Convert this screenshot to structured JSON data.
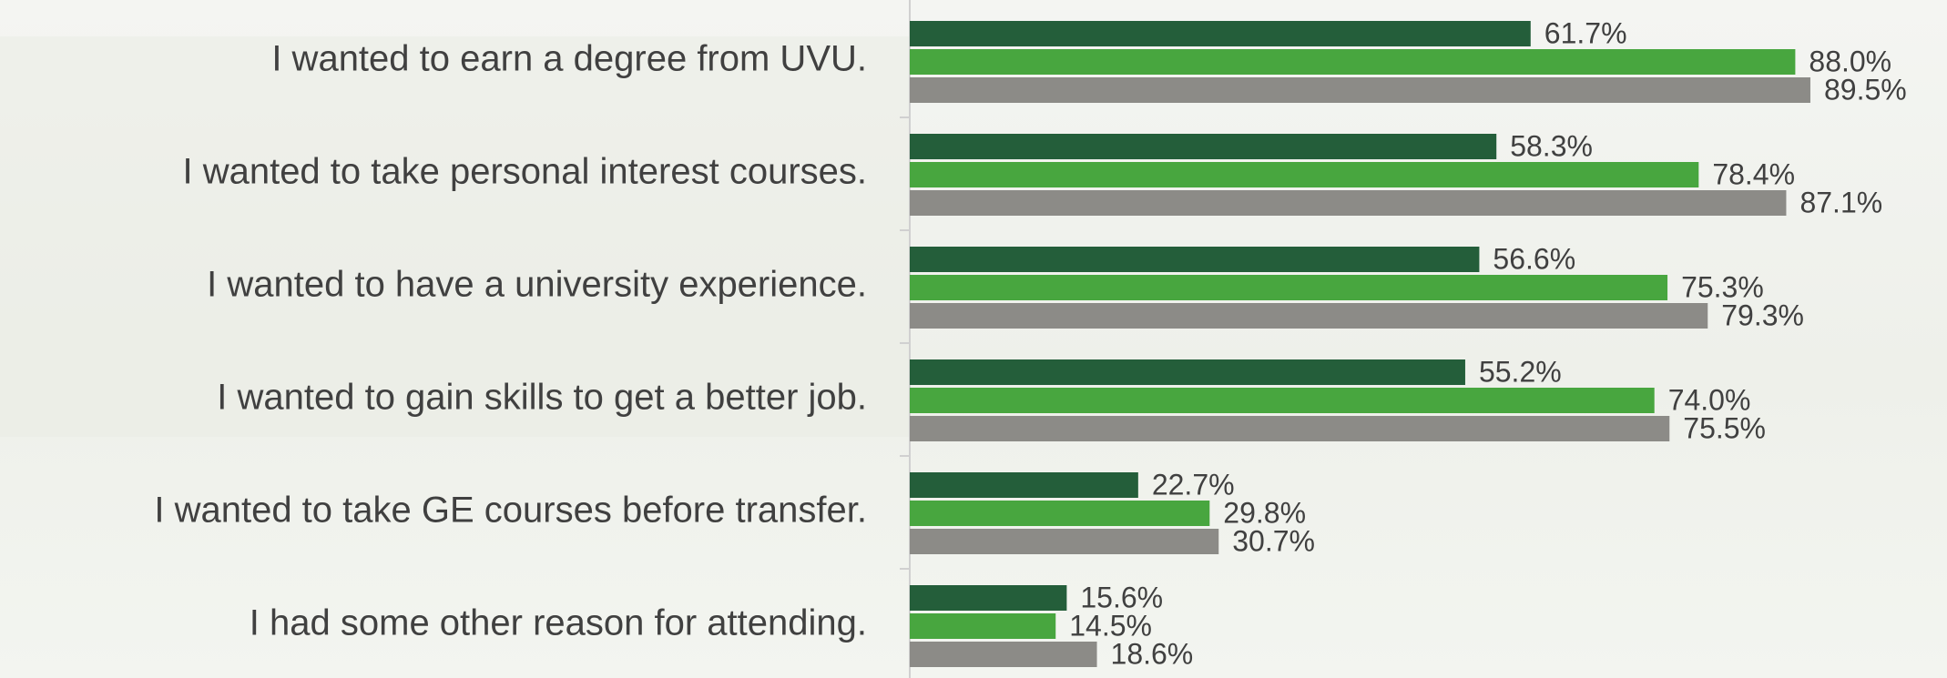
{
  "chart_data": {
    "type": "hbar",
    "categories": [
      "I wanted to earn a degree from UVU.",
      "I wanted to take personal interest courses.",
      "I wanted to have a university experience.",
      "I wanted to gain skills to get a better job.",
      "I wanted to take GE courses before transfer.",
      "I had some other reason for attending."
    ],
    "series": [
      {
        "color": "#245e3a",
        "values": [
          61.7,
          58.3,
          56.6,
          55.2,
          22.7,
          15.6
        ],
        "value_labels": [
          "61.7%",
          "58.3%",
          "56.6%",
          "55.2%",
          "22.7%",
          "15.6%"
        ]
      },
      {
        "color": "#48a63f",
        "values": [
          88.0,
          78.4,
          75.3,
          74.0,
          29.8,
          14.5
        ],
        "value_labels": [
          "88.0%",
          "78.4%",
          "75.3%",
          "74.0%",
          "29.8%",
          "14.5%"
        ]
      },
      {
        "color": "#8c8b87",
        "values": [
          89.5,
          87.1,
          79.3,
          75.5,
          30.7,
          18.6
        ],
        "value_labels": [
          "89.5%",
          "87.1%",
          "79.3%",
          "75.5%",
          "30.7%",
          "18.6%"
        ]
      }
    ],
    "xlim": [
      0,
      100
    ]
  }
}
